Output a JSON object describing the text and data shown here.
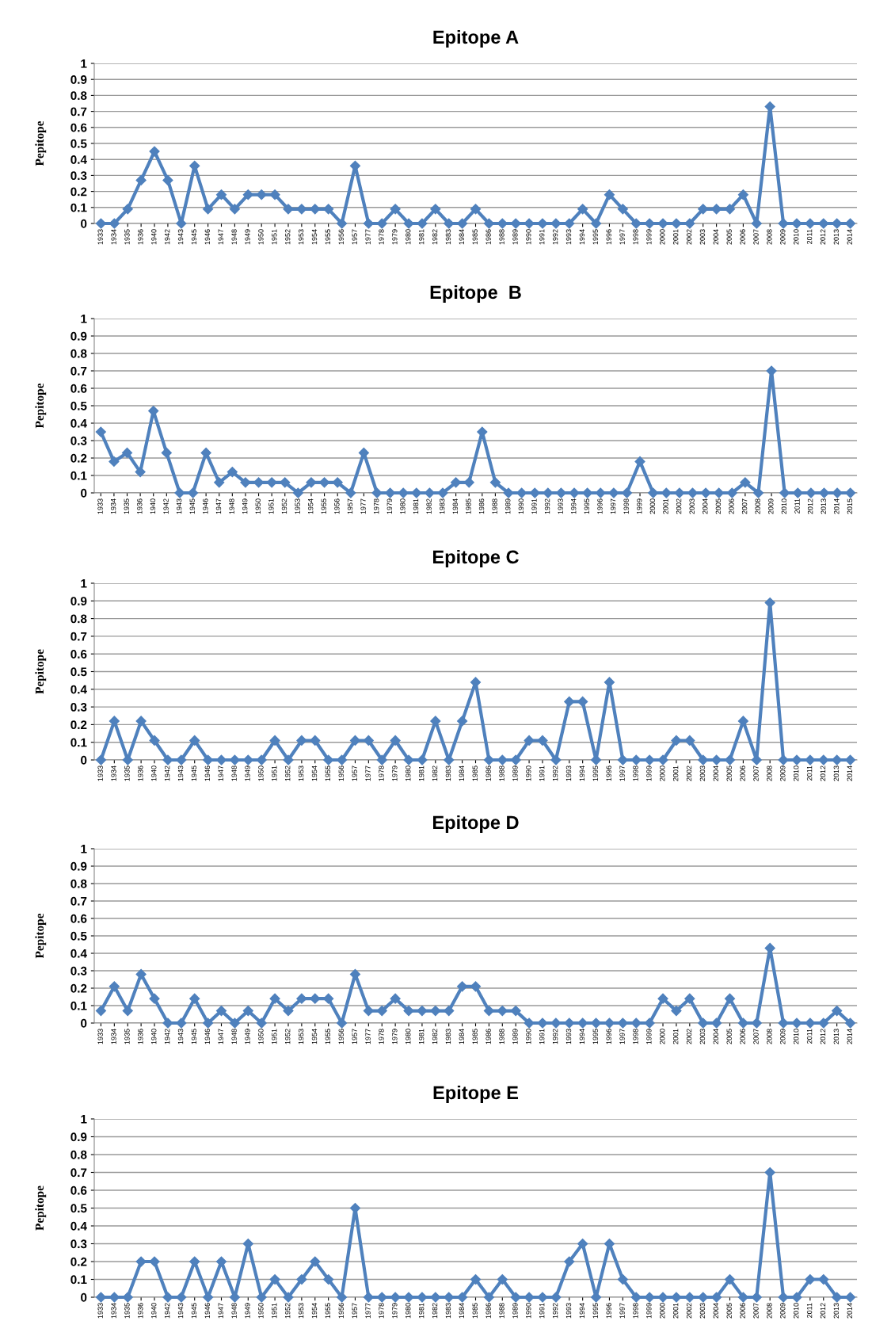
{
  "chart_data": [
    {
      "type": "line",
      "title": "Epitope A",
      "ylabel": "Pepitope",
      "color": "#4f81bd",
      "marker": "diamond",
      "line_style": "solid",
      "grid": "y",
      "ylim": [
        0,
        1
      ],
      "yticks": [
        0,
        0.1,
        0.2,
        0.3,
        0.4,
        0.5,
        0.6,
        0.7,
        0.8,
        0.9,
        1
      ],
      "categories": [
        "1933",
        "1934",
        "1935",
        "1936",
        "1940",
        "1942",
        "1943",
        "1945",
        "1946",
        "1947",
        "1948",
        "1949",
        "1950",
        "1951",
        "1952",
        "1953",
        "1954",
        "1955",
        "1956",
        "1957",
        "1977",
        "1978",
        "1979",
        "1980",
        "1981",
        "1982",
        "1983",
        "1984",
        "1985",
        "1986",
        "1988",
        "1989",
        "1990",
        "1991",
        "1992",
        "1993",
        "1994",
        "1995",
        "1996",
        "1997",
        "1998",
        "1999",
        "2000",
        "2001",
        "2002",
        "2003",
        "2004",
        "2005",
        "2006",
        "2007",
        "2008",
        "2009",
        "2010",
        "2011",
        "2012",
        "2013",
        "2014"
      ],
      "values": [
        0,
        0,
        0.09,
        0.27,
        0.45,
        0.27,
        0,
        0.36,
        0.09,
        0.18,
        0.09,
        0.18,
        0.18,
        0.18,
        0.09,
        0.09,
        0.09,
        0.09,
        0,
        0.36,
        0,
        0,
        0.09,
        0,
        0,
        0.09,
        0,
        0,
        0.09,
        0,
        0,
        0,
        0,
        0,
        0,
        0,
        0.09,
        0,
        0.18,
        0.09,
        0,
        0,
        0,
        0,
        0,
        0.09,
        0.09,
        0.09,
        0.18,
        0,
        0.73,
        0,
        0,
        0,
        0,
        0,
        0
      ]
    },
    {
      "type": "line",
      "title": "Epitope  B",
      "ylabel": "Pepitope",
      "color": "#4f81bd",
      "marker": "diamond",
      "line_style": "solid",
      "grid": "y",
      "ylim": [
        0,
        1
      ],
      "yticks": [
        0,
        0.1,
        0.2,
        0.3,
        0.4,
        0.5,
        0.6,
        0.7,
        0.8,
        0.9,
        1
      ],
      "categories": [
        "1933",
        "1934",
        "1935",
        "1936",
        "1940",
        "1942",
        "1943",
        "1945",
        "1946",
        "1947",
        "1948",
        "1949",
        "1950",
        "1951",
        "1952",
        "1953",
        "1954",
        "1955",
        "1956",
        "1957",
        "1977",
        "1978",
        "1979",
        "1980",
        "1981",
        "1982",
        "1983",
        "1984",
        "1985",
        "1986",
        "1988",
        "1989",
        "1990",
        "1991",
        "1992",
        "1993",
        "1994",
        "1995",
        "1996",
        "1997",
        "1998",
        "1999",
        "2000",
        "2001",
        "2002",
        "2003",
        "2004",
        "2005",
        "2006",
        "2007",
        "2008",
        "2009",
        "2010",
        "2011",
        "2012",
        "2013",
        "2014",
        "2015"
      ],
      "values": [
        0.35,
        0.18,
        0.23,
        0.12,
        0.47,
        0.23,
        0,
        0,
        0.23,
        0.06,
        0.12,
        0.06,
        0.06,
        0.06,
        0.06,
        0,
        0.06,
        0.06,
        0.06,
        0,
        0.23,
        0,
        0,
        0,
        0,
        0,
        0,
        0.06,
        0.06,
        0.35,
        0.06,
        0,
        0,
        0,
        0,
        0,
        0,
        0,
        0,
        0,
        0,
        0.18,
        0,
        0,
        0,
        0,
        0,
        0,
        0,
        0.06,
        0,
        0.7,
        0,
        0,
        0,
        0,
        0,
        0
      ]
    },
    {
      "type": "line",
      "title": "Epitope C",
      "ylabel": "Pepitope",
      "color": "#4f81bd",
      "marker": "diamond",
      "line_style": "solid",
      "grid": "y",
      "ylim": [
        0,
        1
      ],
      "yticks": [
        0,
        0.1,
        0.2,
        0.3,
        0.4,
        0.5,
        0.6,
        0.7,
        0.8,
        0.9,
        1
      ],
      "categories": [
        "1933",
        "1934",
        "1935",
        "1936",
        "1940",
        "1942",
        "1943",
        "1945",
        "1946",
        "1947",
        "1948",
        "1949",
        "1950",
        "1951",
        "1952",
        "1953",
        "1954",
        "1955",
        "1956",
        "1957",
        "1977",
        "1978",
        "1979",
        "1980",
        "1981",
        "1982",
        "1983",
        "1984",
        "1985",
        "1986",
        "1988",
        "1989",
        "1990",
        "1991",
        "1992",
        "1993",
        "1994",
        "1995",
        "1996",
        "1997",
        "1998",
        "1999",
        "2000",
        "2001",
        "2002",
        "2003",
        "2004",
        "2005",
        "2006",
        "2007",
        "2008",
        "2009",
        "2010",
        "2011",
        "2012",
        "2013",
        "2014"
      ],
      "values": [
        0,
        0.22,
        0,
        0.22,
        0.11,
        0,
        0,
        0.11,
        0,
        0,
        0,
        0,
        0,
        0.11,
        0,
        0.11,
        0.11,
        0,
        0,
        0.11,
        0.11,
        0,
        0.11,
        0,
        0,
        0.22,
        0,
        0.22,
        0.44,
        0,
        0,
        0,
        0.11,
        0.11,
        0,
        0.33,
        0.33,
        0,
        0.44,
        0,
        0,
        0,
        0,
        0.11,
        0.11,
        0,
        0,
        0,
        0.22,
        0,
        0.89,
        0,
        0,
        0,
        0,
        0,
        0
      ]
    },
    {
      "type": "line",
      "title": "Epitope D",
      "ylabel": "Pepitope",
      "color": "#4f81bd",
      "marker": "diamond",
      "line_style": "solid",
      "grid": "y",
      "ylim": [
        0,
        1
      ],
      "yticks": [
        0,
        0.1,
        0.2,
        0.3,
        0.4,
        0.5,
        0.6,
        0.7,
        0.8,
        0.9,
        1
      ],
      "categories": [
        "1933",
        "1934",
        "1935",
        "1936",
        "1940",
        "1942",
        "1943",
        "1945",
        "1946",
        "1947",
        "1948",
        "1949",
        "1950",
        "1951",
        "1952",
        "1953",
        "1954",
        "1955",
        "1956",
        "1957",
        "1977",
        "1978",
        "1979",
        "1980",
        "1981",
        "1982",
        "1983",
        "1984",
        "1985",
        "1986",
        "1988",
        "1989",
        "1990",
        "1991",
        "1992",
        "1993",
        "1994",
        "1995",
        "1996",
        "1997",
        "1998",
        "1999",
        "2000",
        "2001",
        "2002",
        "2003",
        "2004",
        "2005",
        "2006",
        "2007",
        "2008",
        "2009",
        "2010",
        "2011",
        "2012",
        "2013",
        "2014"
      ],
      "values": [
        0.07,
        0.21,
        0.07,
        0.28,
        0.14,
        0,
        0,
        0.14,
        0,
        0.07,
        0,
        0.07,
        0,
        0.14,
        0.07,
        0.14,
        0.14,
        0.14,
        0,
        0.28,
        0.07,
        0.07,
        0.14,
        0.07,
        0.07,
        0.07,
        0.07,
        0.21,
        0.21,
        0.07,
        0.07,
        0.07,
        0,
        0,
        0,
        0,
        0,
        0,
        0,
        0,
        0,
        0,
        0.14,
        0.07,
        0.14,
        0,
        0,
        0.14,
        0,
        0,
        0.43,
        0,
        0,
        0,
        0,
        0.07,
        0
      ]
    },
    {
      "type": "line",
      "title": "Epitope E",
      "ylabel": "Pepitope",
      "color": "#4f81bd",
      "marker": "diamond",
      "line_style": "solid",
      "grid": "y",
      "ylim": [
        0,
        1
      ],
      "yticks": [
        0,
        0.1,
        0.2,
        0.3,
        0.4,
        0.5,
        0.6,
        0.7,
        0.8,
        0.9,
        1
      ],
      "categories": [
        "1933",
        "1934",
        "1935",
        "1936",
        "1940",
        "1942",
        "1943",
        "1945",
        "1946",
        "1947",
        "1948",
        "1949",
        "1950",
        "1951",
        "1952",
        "1953",
        "1954",
        "1955",
        "1956",
        "1957",
        "1977",
        "1978",
        "1979",
        "1980",
        "1981",
        "1982",
        "1983",
        "1984",
        "1985",
        "1986",
        "1988",
        "1989",
        "1990",
        "1991",
        "1992",
        "1993",
        "1994",
        "1995",
        "1996",
        "1997",
        "1998",
        "1999",
        "2000",
        "2001",
        "2002",
        "2003",
        "2004",
        "2005",
        "2006",
        "2007",
        "2008",
        "2009",
        "2010",
        "2011",
        "2012",
        "2013",
        "2014"
      ],
      "values": [
        0,
        0,
        0,
        0.2,
        0.2,
        0,
        0,
        0.2,
        0,
        0.2,
        0,
        0.3,
        0,
        0.1,
        0,
        0.1,
        0.2,
        0.1,
        0,
        0.5,
        0,
        0,
        0,
        0,
        0,
        0,
        0,
        0,
        0.1,
        0,
        0.1,
        0,
        0,
        0,
        0,
        0.2,
        0.3,
        0,
        0.3,
        0.1,
        0,
        0,
        0,
        0,
        0,
        0,
        0,
        0.1,
        0,
        0,
        0.7,
        0,
        0,
        0.1,
        0.1,
        0,
        0
      ]
    }
  ]
}
